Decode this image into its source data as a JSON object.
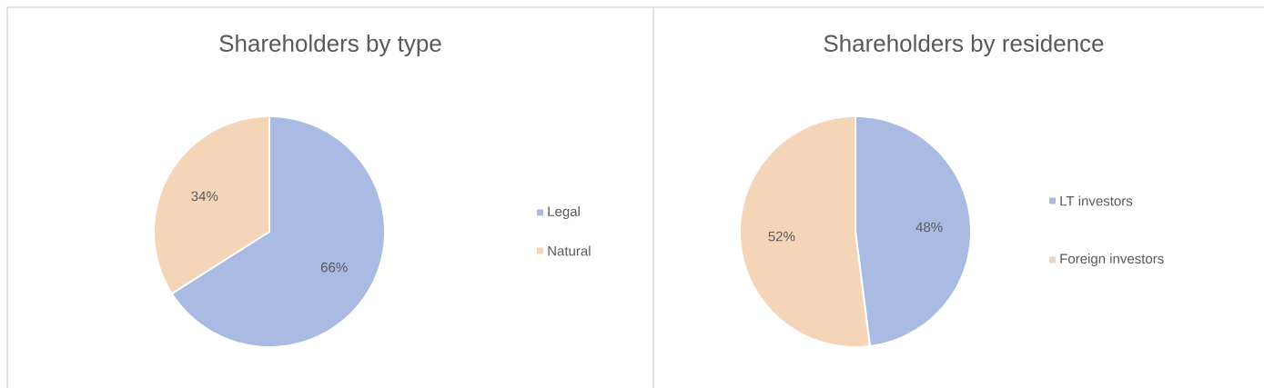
{
  "chart_data": [
    {
      "type": "pie",
      "title": "Shareholders by type",
      "categories": [
        "Legal",
        "Natural"
      ],
      "values": [
        66,
        34
      ],
      "colors": [
        "#a9bbe2",
        "#f5d5b8"
      ],
      "value_labels": [
        "66%",
        "34%"
      ],
      "legend": "right"
    },
    {
      "type": "pie",
      "title": "Shareholders by residence",
      "categories": [
        "LT investors",
        "Foreign investors"
      ],
      "values": [
        48,
        52
      ],
      "colors": [
        "#a9bbe2",
        "#f5d5b8"
      ],
      "value_labels": [
        "48%",
        "52%"
      ],
      "legend": "right"
    }
  ]
}
